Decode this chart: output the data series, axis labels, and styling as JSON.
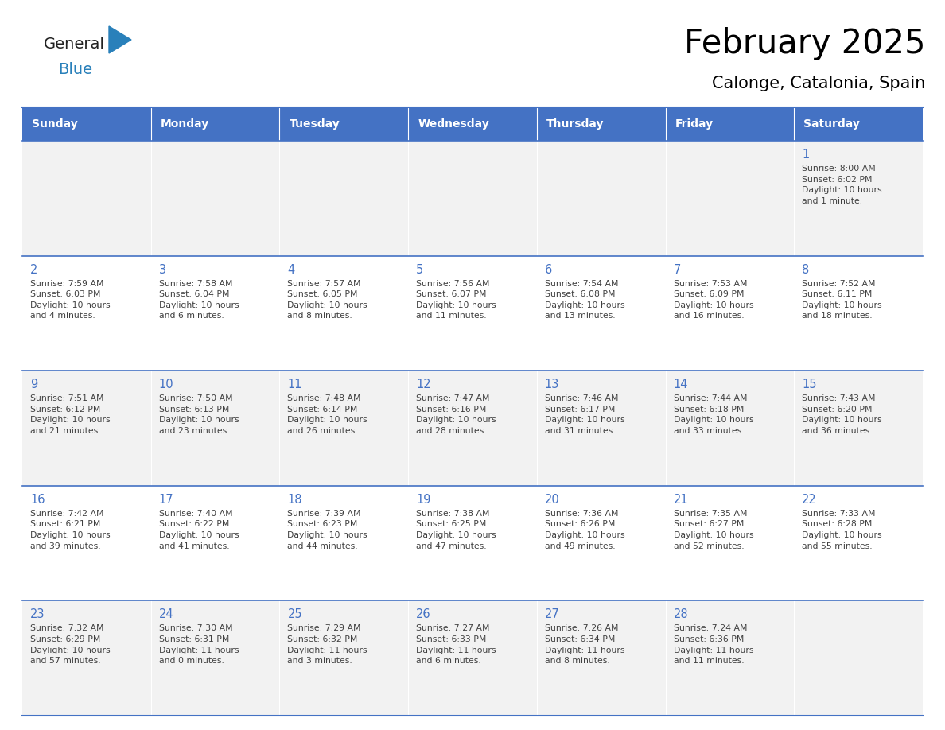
{
  "title": "February 2025",
  "subtitle": "Calonge, Catalonia, Spain",
  "header_bg": "#4472C4",
  "header_text_color": "#FFFFFF",
  "cell_bg_row0": "#F2F2F2",
  "cell_bg_row1": "#FFFFFF",
  "cell_bg_row2": "#F2F2F2",
  "cell_bg_row3": "#FFFFFF",
  "cell_bg_row4": "#F2F2F2",
  "day_number_color": "#4472C4",
  "text_color": "#404040",
  "border_color": "#4472C4",
  "days_of_week": [
    "Sunday",
    "Monday",
    "Tuesday",
    "Wednesday",
    "Thursday",
    "Friday",
    "Saturday"
  ],
  "calendar_data": [
    [
      null,
      null,
      null,
      null,
      null,
      null,
      {
        "day": "1",
        "sunrise": "8:00 AM",
        "sunset": "6:02 PM",
        "daylight": "10 hours\nand 1 minute."
      }
    ],
    [
      {
        "day": "2",
        "sunrise": "7:59 AM",
        "sunset": "6:03 PM",
        "daylight": "10 hours\nand 4 minutes."
      },
      {
        "day": "3",
        "sunrise": "7:58 AM",
        "sunset": "6:04 PM",
        "daylight": "10 hours\nand 6 minutes."
      },
      {
        "day": "4",
        "sunrise": "7:57 AM",
        "sunset": "6:05 PM",
        "daylight": "10 hours\nand 8 minutes."
      },
      {
        "day": "5",
        "sunrise": "7:56 AM",
        "sunset": "6:07 PM",
        "daylight": "10 hours\nand 11 minutes."
      },
      {
        "day": "6",
        "sunrise": "7:54 AM",
        "sunset": "6:08 PM",
        "daylight": "10 hours\nand 13 minutes."
      },
      {
        "day": "7",
        "sunrise": "7:53 AM",
        "sunset": "6:09 PM",
        "daylight": "10 hours\nand 16 minutes."
      },
      {
        "day": "8",
        "sunrise": "7:52 AM",
        "sunset": "6:11 PM",
        "daylight": "10 hours\nand 18 minutes."
      }
    ],
    [
      {
        "day": "9",
        "sunrise": "7:51 AM",
        "sunset": "6:12 PM",
        "daylight": "10 hours\nand 21 minutes."
      },
      {
        "day": "10",
        "sunrise": "7:50 AM",
        "sunset": "6:13 PM",
        "daylight": "10 hours\nand 23 minutes."
      },
      {
        "day": "11",
        "sunrise": "7:48 AM",
        "sunset": "6:14 PM",
        "daylight": "10 hours\nand 26 minutes."
      },
      {
        "day": "12",
        "sunrise": "7:47 AM",
        "sunset": "6:16 PM",
        "daylight": "10 hours\nand 28 minutes."
      },
      {
        "day": "13",
        "sunrise": "7:46 AM",
        "sunset": "6:17 PM",
        "daylight": "10 hours\nand 31 minutes."
      },
      {
        "day": "14",
        "sunrise": "7:44 AM",
        "sunset": "6:18 PM",
        "daylight": "10 hours\nand 33 minutes."
      },
      {
        "day": "15",
        "sunrise": "7:43 AM",
        "sunset": "6:20 PM",
        "daylight": "10 hours\nand 36 minutes."
      }
    ],
    [
      {
        "day": "16",
        "sunrise": "7:42 AM",
        "sunset": "6:21 PM",
        "daylight": "10 hours\nand 39 minutes."
      },
      {
        "day": "17",
        "sunrise": "7:40 AM",
        "sunset": "6:22 PM",
        "daylight": "10 hours\nand 41 minutes."
      },
      {
        "day": "18",
        "sunrise": "7:39 AM",
        "sunset": "6:23 PM",
        "daylight": "10 hours\nand 44 minutes."
      },
      {
        "day": "19",
        "sunrise": "7:38 AM",
        "sunset": "6:25 PM",
        "daylight": "10 hours\nand 47 minutes."
      },
      {
        "day": "20",
        "sunrise": "7:36 AM",
        "sunset": "6:26 PM",
        "daylight": "10 hours\nand 49 minutes."
      },
      {
        "day": "21",
        "sunrise": "7:35 AM",
        "sunset": "6:27 PM",
        "daylight": "10 hours\nand 52 minutes."
      },
      {
        "day": "22",
        "sunrise": "7:33 AM",
        "sunset": "6:28 PM",
        "daylight": "10 hours\nand 55 minutes."
      }
    ],
    [
      {
        "day": "23",
        "sunrise": "7:32 AM",
        "sunset": "6:29 PM",
        "daylight": "10 hours\nand 57 minutes."
      },
      {
        "day": "24",
        "sunrise": "7:30 AM",
        "sunset": "6:31 PM",
        "daylight": "11 hours\nand 0 minutes."
      },
      {
        "day": "25",
        "sunrise": "7:29 AM",
        "sunset": "6:32 PM",
        "daylight": "11 hours\nand 3 minutes."
      },
      {
        "day": "26",
        "sunrise": "7:27 AM",
        "sunset": "6:33 PM",
        "daylight": "11 hours\nand 6 minutes."
      },
      {
        "day": "27",
        "sunrise": "7:26 AM",
        "sunset": "6:34 PM",
        "daylight": "11 hours\nand 8 minutes."
      },
      {
        "day": "28",
        "sunrise": "7:24 AM",
        "sunset": "6:36 PM",
        "daylight": "11 hours\nand 11 minutes."
      },
      null
    ]
  ],
  "logo_text1": "General",
  "logo_text2": "Blue",
  "logo_color1": "#222222",
  "logo_color2": "#2980BA",
  "logo_triangle_color": "#2980BA"
}
